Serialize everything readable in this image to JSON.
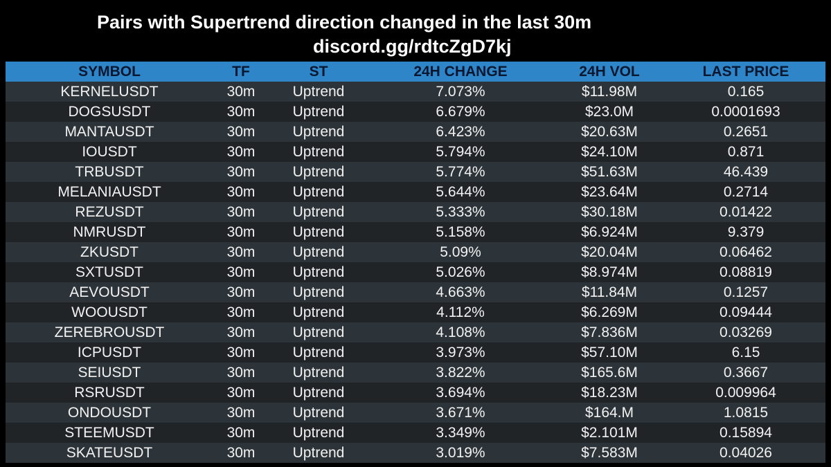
{
  "header": {
    "title": "Pairs with Supertrend direction changed in the last 30m",
    "subtitle": "discord.gg/rdtcZgD7kj"
  },
  "colors": {
    "background": "#000000",
    "header_bg": "#2e86c8",
    "header_text": "#0a1730",
    "row_even": "#2d3439",
    "row_odd": "#202427",
    "text": "#f2f2f2"
  },
  "table": {
    "columns": [
      "SYMBOL",
      "TF",
      "ST",
      "24H CHANGE",
      "24H VOL",
      "LAST PRICE"
    ],
    "rows": [
      {
        "symbol": "KERNELUSDT",
        "tf": "30m",
        "st": "Uptrend",
        "change": "7.073%",
        "vol": "$11.98M",
        "price": "0.165"
      },
      {
        "symbol": "DOGSUSDT",
        "tf": "30m",
        "st": "Uptrend",
        "change": "6.679%",
        "vol": "$23.0M",
        "price": "0.0001693"
      },
      {
        "symbol": "MANTAUSDT",
        "tf": "30m",
        "st": "Uptrend",
        "change": "6.423%",
        "vol": "$20.63M",
        "price": "0.2651"
      },
      {
        "symbol": "IOUSDT",
        "tf": "30m",
        "st": "Uptrend",
        "change": "5.794%",
        "vol": "$24.10M",
        "price": "0.871"
      },
      {
        "symbol": "TRBUSDT",
        "tf": "30m",
        "st": "Uptrend",
        "change": "5.774%",
        "vol": "$51.63M",
        "price": "46.439"
      },
      {
        "symbol": "MELANIAUSDT",
        "tf": "30m",
        "st": "Uptrend",
        "change": "5.644%",
        "vol": "$23.64M",
        "price": "0.2714"
      },
      {
        "symbol": "REZUSDT",
        "tf": "30m",
        "st": "Uptrend",
        "change": "5.333%",
        "vol": "$30.18M",
        "price": "0.01422"
      },
      {
        "symbol": "NMRUSDT",
        "tf": "30m",
        "st": "Uptrend",
        "change": "5.158%",
        "vol": "$6.924M",
        "price": "9.379"
      },
      {
        "symbol": "ZKUSDT",
        "tf": "30m",
        "st": "Uptrend",
        "change": "5.09%",
        "vol": "$20.04M",
        "price": "0.06462"
      },
      {
        "symbol": "SXTUSDT",
        "tf": "30m",
        "st": "Uptrend",
        "change": "5.026%",
        "vol": "$8.974M",
        "price": "0.08819"
      },
      {
        "symbol": "AEVOUSDT",
        "tf": "30m",
        "st": "Uptrend",
        "change": "4.663%",
        "vol": "$11.84M",
        "price": "0.1257"
      },
      {
        "symbol": "WOOUSDT",
        "tf": "30m",
        "st": "Uptrend",
        "change": "4.112%",
        "vol": "$6.269M",
        "price": "0.09444"
      },
      {
        "symbol": "ZEREBROUSDT",
        "tf": "30m",
        "st": "Uptrend",
        "change": "4.108%",
        "vol": "$7.836M",
        "price": "0.03269"
      },
      {
        "symbol": "ICPUSDT",
        "tf": "30m",
        "st": "Uptrend",
        "change": "3.973%",
        "vol": "$57.10M",
        "price": "6.15"
      },
      {
        "symbol": "SEIUSDT",
        "tf": "30m",
        "st": "Uptrend",
        "change": "3.822%",
        "vol": "$165.6M",
        "price": "0.3667"
      },
      {
        "symbol": "RSRUSDT",
        "tf": "30m",
        "st": "Uptrend",
        "change": "3.694%",
        "vol": "$18.23M",
        "price": "0.009964"
      },
      {
        "symbol": "ONDOUSDT",
        "tf": "30m",
        "st": "Uptrend",
        "change": "3.671%",
        "vol": "$164.M",
        "price": "1.0815"
      },
      {
        "symbol": "STEEMUSDT",
        "tf": "30m",
        "st": "Uptrend",
        "change": "3.349%",
        "vol": "$2.101M",
        "price": "0.15894"
      },
      {
        "symbol": "SKATEUSDT",
        "tf": "30m",
        "st": "Uptrend",
        "change": "3.019%",
        "vol": "$7.583M",
        "price": "0.04026"
      }
    ]
  }
}
